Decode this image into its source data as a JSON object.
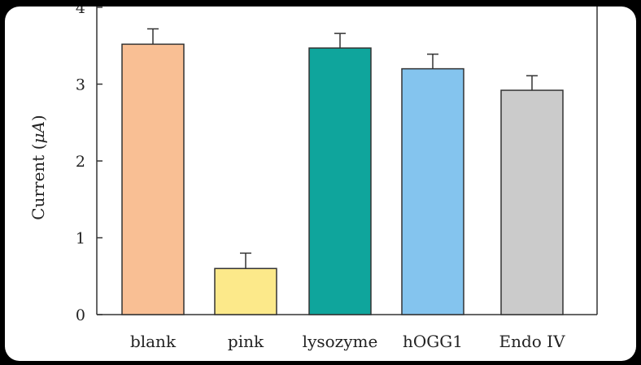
{
  "chart_data": {
    "type": "bar",
    "title": "",
    "xlabel": "",
    "ylabel_text": "Current (",
    "ylabel_unit": "μA",
    "ylabel_close": ")",
    "ylim": [
      0,
      4
    ],
    "yticks": [
      "0",
      "1",
      "2",
      "3",
      "4"
    ],
    "categories": [
      "blank",
      "pink",
      "lysozyme",
      "hOGG1",
      "Endo IV"
    ],
    "values": [
      3.52,
      0.6,
      3.47,
      3.2,
      2.92
    ],
    "errors": [
      0.2,
      0.2,
      0.19,
      0.19,
      0.19
    ],
    "colors": [
      "#F9BF94",
      "#FCE98A",
      "#0FA59C",
      "#84C4EE",
      "#CBCBCB"
    ],
    "grid": false,
    "legend": "none"
  }
}
